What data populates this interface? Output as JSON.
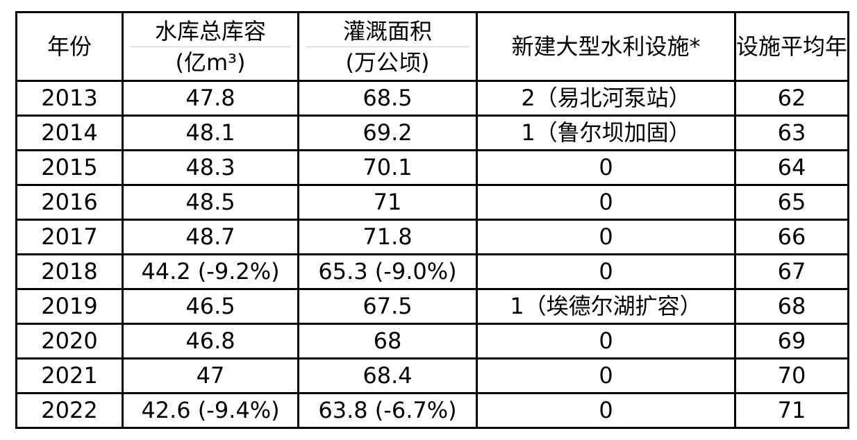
{
  "table": {
    "header": [
      [
        "年份"
      ],
      [
        "水库总库容",
        "(亿m³)"
      ],
      [
        "灌溉面积",
        "(万公顷)"
      ],
      [
        "新建大型水利设施*"
      ],
      [
        "设施平均年"
      ]
    ],
    "rows": [
      [
        2013,
        47.8,
        68.5,
        "2（易北河泵站）",
        62
      ],
      [
        2014,
        48.1,
        69.2,
        "1（鲁尔坝加固）",
        63
      ],
      [
        2015,
        48.3,
        70.1,
        0,
        64
      ],
      [
        2016,
        48.5,
        71,
        0,
        65
      ],
      [
        2017,
        48.7,
        71.8,
        0,
        66
      ],
      [
        2018,
        "44.2 (-9.2%)",
        "65.3 (-9.0%)",
        0,
        67
      ],
      [
        2019,
        46.5,
        67.5,
        "1（埃德尔湖扩容）",
        68
      ],
      [
        2020,
        46.8,
        68,
        0,
        69
      ],
      [
        2021,
        47,
        68.4,
        0,
        70
      ],
      [
        2022,
        "42.6 (-9.4%)",
        "63.8 (-6.7%)",
        0,
        71
      ]
    ]
  }
}
